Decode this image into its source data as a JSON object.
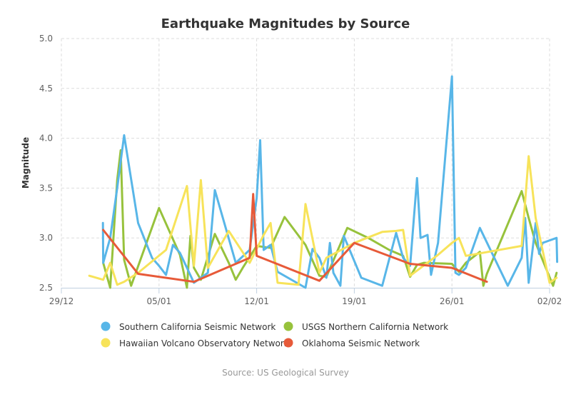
{
  "chart_data": {
    "type": "line",
    "title": "Earthquake Magnitudes by Source",
    "subtitle": "",
    "xlabel": "",
    "ylabel": "Magnitude",
    "source": "Source: US Geological Survey",
    "ylim": [
      2.5,
      5.0
    ],
    "xlim": [
      "2014-12-29",
      "2015-02-02"
    ],
    "grid": true,
    "legend_position": "bottom",
    "x_ticks": [
      {
        "date": "2014-12-29",
        "label": "29/12"
      },
      {
        "date": "2015-01-05",
        "label": "05/01"
      },
      {
        "date": "2015-01-12",
        "label": "12/01"
      },
      {
        "date": "2015-01-19",
        "label": "19/01"
      },
      {
        "date": "2015-01-26",
        "label": "26/01"
      },
      {
        "date": "2015-02-02",
        "label": "02/02"
      }
    ],
    "y_ticks": [
      "2.5",
      "3.0",
      "3.5",
      "4.0",
      "4.5",
      "5.0"
    ],
    "series": [
      {
        "name": "Southern California Seismic Network",
        "color": "#58b6e8",
        "points": [
          [
            "2014-12-31 23:30",
            3.15
          ],
          [
            "2015-01-01 00:00",
            2.75
          ],
          [
            "2015-01-01 12:00",
            3.0
          ],
          [
            "2015-01-02 00:00",
            3.5
          ],
          [
            "2015-01-02 12:00",
            4.03
          ],
          [
            "2015-01-03 12:00",
            3.15
          ],
          [
            "2015-01-04 12:00",
            2.8
          ],
          [
            "2015-01-05 00:00",
            2.72
          ],
          [
            "2015-01-05 12:00",
            2.63
          ],
          [
            "2015-01-06 00:00",
            2.93
          ],
          [
            "2015-01-06 12:00",
            2.85
          ],
          [
            "2015-01-07 12:00",
            2.55
          ],
          [
            "2015-01-08 12:00",
            2.65
          ],
          [
            "2015-01-09 00:00",
            3.48
          ],
          [
            "2015-01-10 12:00",
            2.75
          ],
          [
            "2015-01-11 12:00",
            2.88
          ],
          [
            "2015-01-12 00:00",
            3.4
          ],
          [
            "2015-01-12 06:00",
            3.98
          ],
          [
            "2015-01-12 12:00",
            2.88
          ],
          [
            "2015-01-13 00:00",
            2.93
          ],
          [
            "2015-01-13 12:00",
            2.66
          ],
          [
            "2015-01-15 12:00",
            2.5
          ],
          [
            "2015-01-16 00:00",
            2.89
          ],
          [
            "2015-01-16 12:00",
            2.8
          ],
          [
            "2015-01-17 00:00",
            2.6
          ],
          [
            "2015-01-17 06:00",
            2.95
          ],
          [
            "2015-01-17 12:00",
            2.65
          ],
          [
            "2015-01-18 00:00",
            2.52
          ],
          [
            "2015-01-18 06:00",
            3.02
          ],
          [
            "2015-01-19 12:00",
            2.6
          ],
          [
            "2015-01-21 00:00",
            2.52
          ],
          [
            "2015-01-22 00:00",
            3.05
          ],
          [
            "2015-01-22 12:00",
            2.8
          ],
          [
            "2015-01-23 00:00",
            2.72
          ],
          [
            "2015-01-23 12:00",
            3.6
          ],
          [
            "2015-01-23 18:00",
            3.0
          ],
          [
            "2015-01-24 06:00",
            3.03
          ],
          [
            "2015-01-24 12:00",
            2.63
          ],
          [
            "2015-01-25 00:00",
            2.95
          ],
          [
            "2015-01-26 00:00",
            4.62
          ],
          [
            "2015-01-26 06:00",
            2.65
          ],
          [
            "2015-01-26 12:00",
            2.63
          ],
          [
            "2015-01-27 00:00",
            2.7
          ],
          [
            "2015-01-28 00:00",
            3.1
          ],
          [
            "2015-01-30 00:00",
            2.52
          ],
          [
            "2015-01-31 00:00",
            2.8
          ],
          [
            "2015-01-31 06:00",
            3.2
          ],
          [
            "2015-01-31 12:00",
            2.55
          ],
          [
            "2015-02-01 00:00",
            3.15
          ],
          [
            "2015-02-01 06:00",
            2.84
          ],
          [
            "2015-02-01 12:00",
            2.95
          ],
          [
            "2015-02-02 12:00",
            3.0
          ],
          [
            "2015-02-02 13:00",
            2.76
          ]
        ]
      },
      {
        "name": "Hawaiian Volcano Observatory Network",
        "color": "#f7e35a",
        "points": [
          [
            "2014-12-31 00:00",
            2.62
          ],
          [
            "2015-01-01 00:00",
            2.58
          ],
          [
            "2015-01-01 12:00",
            2.75
          ],
          [
            "2015-01-02 00:00",
            2.53
          ],
          [
            "2015-01-02 12:00",
            2.56
          ],
          [
            "2015-01-03 12:00",
            2.65
          ],
          [
            "2015-01-05 12:00",
            2.88
          ],
          [
            "2015-01-07 00:00",
            3.52
          ],
          [
            "2015-01-07 12:00",
            2.72
          ],
          [
            "2015-01-08 00:00",
            3.58
          ],
          [
            "2015-01-08 12:00",
            2.7
          ],
          [
            "2015-01-10 00:00",
            3.07
          ],
          [
            "2015-01-11 12:00",
            2.75
          ],
          [
            "2015-01-12 12:00",
            3.03
          ],
          [
            "2015-01-13 00:00",
            3.15
          ],
          [
            "2015-01-13 12:00",
            2.55
          ],
          [
            "2015-01-15 00:00",
            2.53
          ],
          [
            "2015-01-15 12:00",
            3.34
          ],
          [
            "2015-01-16 12:00",
            2.65
          ],
          [
            "2015-01-17 00:00",
            2.8
          ],
          [
            "2015-01-19 00:00",
            2.95
          ],
          [
            "2015-01-21 00:00",
            3.06
          ],
          [
            "2015-01-22 00:00",
            3.07
          ],
          [
            "2015-01-22 12:00",
            3.08
          ],
          [
            "2015-01-23 00:00",
            2.62
          ],
          [
            "2015-01-25 00:00",
            2.83
          ],
          [
            "2015-01-26 00:00",
            2.95
          ],
          [
            "2015-01-26 12:00",
            3.0
          ],
          [
            "2015-01-27 00:00",
            2.82
          ],
          [
            "2015-01-31 00:00",
            2.92
          ],
          [
            "2015-01-31 12:00",
            3.82
          ],
          [
            "2015-02-01 00:00",
            3.2
          ],
          [
            "2015-02-02 00:00",
            2.55
          ],
          [
            "2015-02-02 12:00",
            2.6
          ]
        ]
      },
      {
        "name": "USGS Northern California Network",
        "color": "#97c23c",
        "points": [
          [
            "2015-01-01 00:00",
            2.75
          ],
          [
            "2015-01-01 12:00",
            2.5
          ],
          [
            "2015-01-02 00:00",
            3.58
          ],
          [
            "2015-01-02 06:00",
            3.88
          ],
          [
            "2015-01-02 12:00",
            2.78
          ],
          [
            "2015-01-03 00:00",
            2.52
          ],
          [
            "2015-01-05 00:00",
            3.3
          ],
          [
            "2015-01-06 12:00",
            2.83
          ],
          [
            "2015-01-07 00:00",
            2.5
          ],
          [
            "2015-01-07 06:00",
            3.02
          ],
          [
            "2015-01-07 12:00",
            2.7
          ],
          [
            "2015-01-08 00:00",
            2.58
          ],
          [
            "2015-01-08 12:00",
            2.81
          ],
          [
            "2015-01-09 00:00",
            3.04
          ],
          [
            "2015-01-10 00:00",
            2.75
          ],
          [
            "2015-01-10 12:00",
            2.58
          ],
          [
            "2015-01-11 00:00",
            2.7
          ],
          [
            "2015-01-12 00:00",
            2.92
          ],
          [
            "2015-01-12 12:00",
            2.91
          ],
          [
            "2015-01-13 00:00",
            2.9
          ],
          [
            "2015-01-14 00:00",
            3.21
          ],
          [
            "2015-01-15 12:00",
            2.93
          ],
          [
            "2015-01-16 12:00",
            2.62
          ],
          [
            "2015-01-17 00:00",
            2.61
          ],
          [
            "2015-01-18 12:00",
            3.1
          ],
          [
            "2015-01-20 00:00",
            3.0
          ],
          [
            "2015-01-21 12:00",
            2.88
          ],
          [
            "2015-01-22 12:00",
            2.82
          ],
          [
            "2015-01-23 00:00",
            2.61
          ],
          [
            "2015-01-23 12:00",
            2.73
          ],
          [
            "2015-01-24 00:00",
            2.75
          ],
          [
            "2015-01-26 00:00",
            2.74
          ],
          [
            "2015-01-26 12:00",
            2.66
          ],
          [
            "2015-01-27 00:00",
            2.75
          ],
          [
            "2015-01-28 00:00",
            2.86
          ],
          [
            "2015-01-28 06:00",
            2.52
          ],
          [
            "2015-01-28 12:00",
            2.64
          ],
          [
            "2015-01-31 00:00",
            3.47
          ],
          [
            "2015-01-31 12:00",
            3.2
          ],
          [
            "2015-02-01 00:00",
            2.95
          ],
          [
            "2015-02-02 06:00",
            2.52
          ],
          [
            "2015-02-02 12:00",
            2.65
          ]
        ]
      },
      {
        "name": "Oklahoma Seismic Network",
        "color": "#e75a39",
        "points": [
          [
            "2015-01-01 00:00",
            3.08
          ],
          [
            "2015-01-03 12:00",
            2.64
          ],
          [
            "2015-01-07 12:00",
            2.56
          ],
          [
            "2015-01-11 12:00",
            2.8
          ],
          [
            "2015-01-11 18:00",
            3.44
          ],
          [
            "2015-01-12 00:00",
            2.82
          ],
          [
            "2015-01-16 12:00",
            2.57
          ],
          [
            "2015-01-19 00:00",
            2.95
          ],
          [
            "2015-01-23 00:00",
            2.74
          ],
          [
            "2015-01-26 00:00",
            2.7
          ],
          [
            "2015-01-28 12:00",
            2.56
          ]
        ]
      }
    ]
  }
}
